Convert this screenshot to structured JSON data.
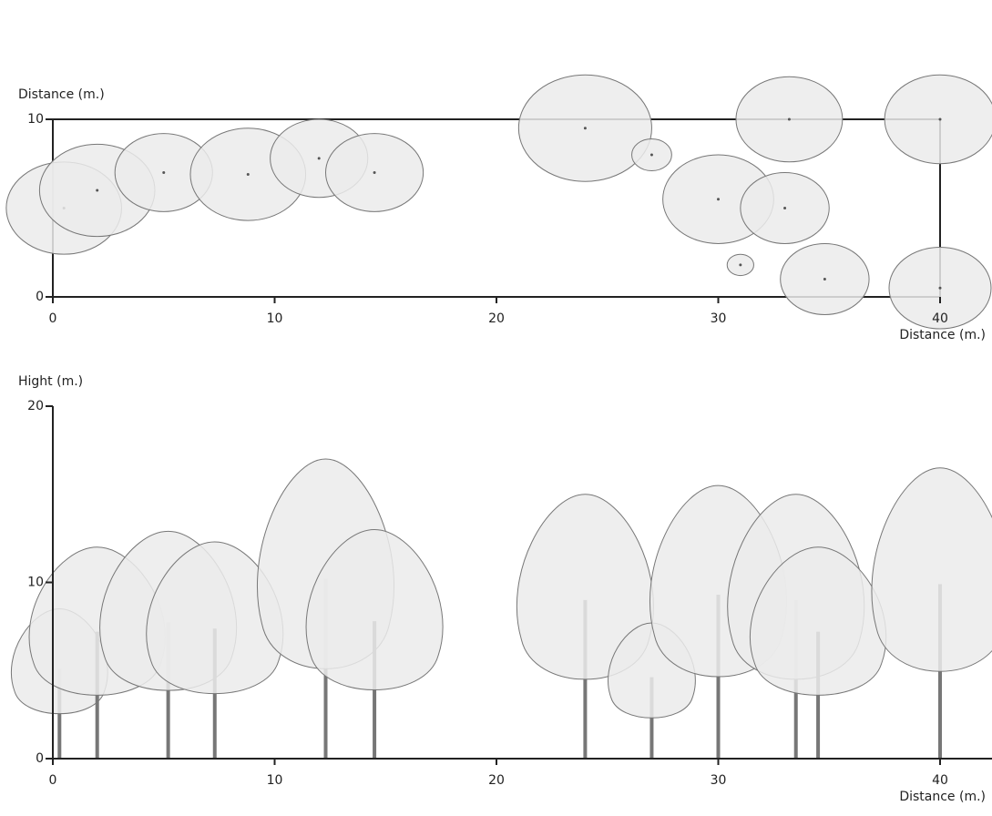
{
  "chart_data": [
    {
      "type": "scatter",
      "ylabel": "Distance (m.)",
      "xlabel": "Distance (m.)",
      "x": [
        0.5,
        2,
        5,
        8.8,
        12,
        14.5,
        24,
        27,
        30,
        31,
        33,
        33.2,
        34.8,
        40,
        40
      ],
      "y": [
        5,
        6,
        7,
        6.9,
        7.8,
        7,
        9.5,
        8,
        5.5,
        1.8,
        5,
        10,
        1,
        0.5,
        10
      ],
      "sizes": [
        2.6,
        2.6,
        2.2,
        2.6,
        2.2,
        2.2,
        3,
        0.9,
        2.5,
        0.6,
        2,
        2.4,
        2,
        2.3,
        2.5
      ],
      "color": "#ebebeb",
      "xlim": [
        0,
        40
      ],
      "ylim": [
        0,
        10
      ],
      "xticks": [
        0,
        10,
        20,
        30,
        40
      ],
      "yticks": [
        0,
        10
      ]
    },
    {
      "type": "trees",
      "ylabel": "Hight (m.)",
      "xlabel": "Distance (m.)",
      "x": [
        0.3,
        2,
        5.2,
        7.3,
        12.3,
        14.5,
        24,
        27,
        30,
        33.5,
        34.5,
        40
      ],
      "values": [
        8.5,
        12,
        12.9,
        12.3,
        17,
        13,
        15,
        7.7,
        15.5,
        15,
        12,
        16.5
      ],
      "color": "#ebebeb",
      "xlim": [
        0,
        40
      ],
      "ylim": [
        0,
        20
      ],
      "xticks": [
        0,
        10,
        20,
        30,
        40
      ],
      "yticks": [
        0,
        10,
        20
      ]
    }
  ]
}
